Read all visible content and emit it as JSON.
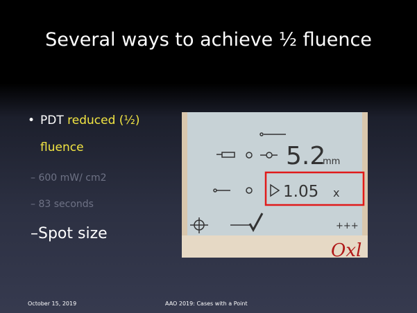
{
  "slide": {
    "title": "Several ways to achieve ½ fluence",
    "bullet": {
      "lead": "PDT",
      "highlight": "reduced (½)",
      "highlight_cont": "fluence"
    },
    "sub_bullets": [
      "– 600 mW/ cm2",
      "– 83 seconds",
      "–Spot size"
    ],
    "photo": {
      "spot_value": "5.2",
      "spot_unit": "mm",
      "zoom_value": "1.05",
      "zoom_unit": "x",
      "plus": "+++"
    },
    "footer": {
      "date": "October 15, 2019",
      "center": "AAO 2019: Cases with a Point"
    }
  }
}
